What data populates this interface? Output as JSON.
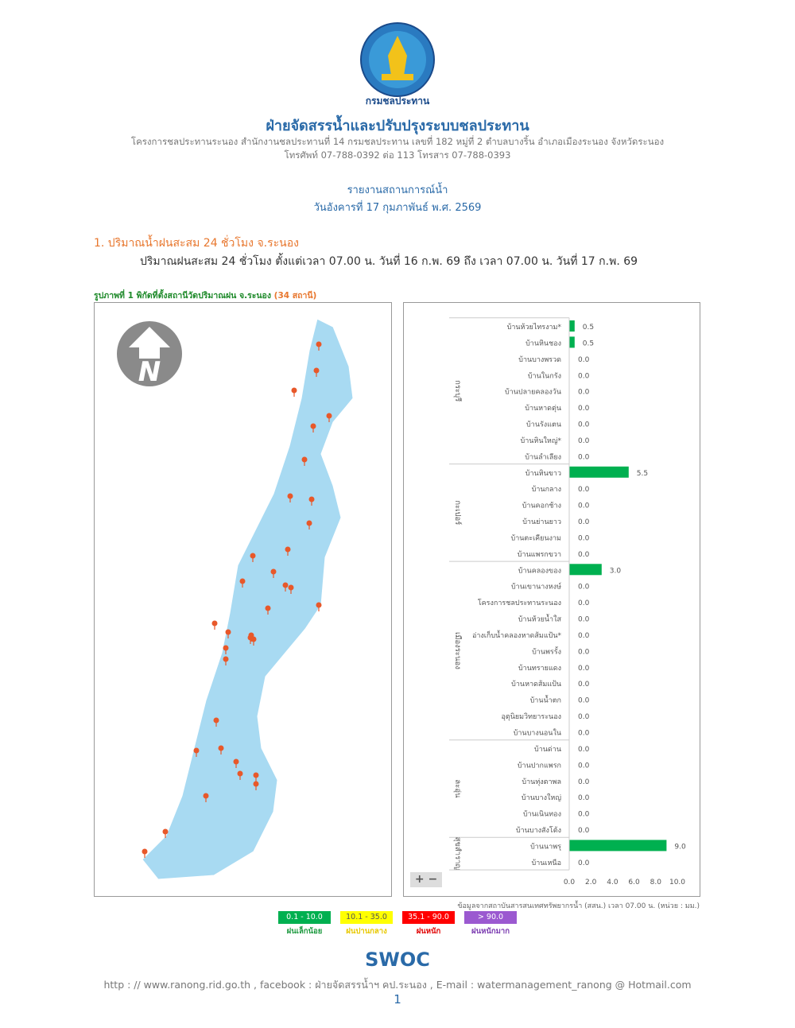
{
  "logo": {
    "text": "กรมชลประทาน"
  },
  "header": {
    "title": "ฝ่ายจัดสรรน้ำและปรับปรุงระบบชลประทาน",
    "address": "โครงการชลประทานระนอง สำนักงานชลประทานที่ 14 กรมชลประทาน เลขที่ 182 หมู่ที่ 2 ตำบลบางริ้น อำเภอเมืองระนอง จังหวัดระนอง",
    "phone": "โทรศัพท์ 07-788-0392 ต่อ 113 โทรสาร 07-788-0393"
  },
  "report": {
    "title": "รายงานสถานการณ์น้ำ",
    "date": "วันอังคารที่ 17 กุมภาพันธ์ พ.ศ. 2569"
  },
  "section1": {
    "heading": "1. ปริมาณน้ำฝนสะสม 24 ชั่วโมง จ.ระนอง",
    "period": "ปริมาณฝนสะสม 24 ชั่วโมง ตั้งแต่เวลา 07.00 น. วันที่ 16 ก.พ. 69 ถึง เวลา 07.00 น. วันที่ 17 ก.พ. 69",
    "figure_caption": "รูปภาพที่ 1 พิกัดที่ตั้งสถานีวัดปริมาณฝน จ.ระนอง",
    "figure_count": "(34 สถานี)"
  },
  "map": {
    "zoom_in": "+",
    "zoom_out": "−",
    "north_icon": "north-arrow-icon",
    "water_color": "#a8daf2",
    "marker_color": "#e8582a"
  },
  "chart_data": {
    "type": "bar",
    "orientation": "horizontal",
    "bar_color": "#00b050",
    "xlim": [
      0,
      10
    ],
    "x_ticks": [
      "0.0",
      "2.0",
      "4.0",
      "6.0",
      "8.0",
      "10.0"
    ],
    "groups": [
      {
        "name": "กระบุรี",
        "stations": [
          "บ้านห้วยไทรงาม*",
          "บ้านหินชอง",
          "บ้านบางพรวด",
          "บ้านในกรัง",
          "บ้านปลายคลองวัน",
          "บ้านหาดตุ่น",
          "บ้านรังแตน",
          "บ้านหินใหญ่*",
          "บ้านลำเลียง"
        ],
        "values": [
          0.5,
          0.5,
          0.0,
          0.0,
          0.0,
          0.0,
          0.0,
          0.0,
          0.0
        ]
      },
      {
        "name": "กะเปอร์",
        "stations": [
          "บ้านหินขาว",
          "บ้านกลาง",
          "บ้านคอกช้าง",
          "บ้านย่านยาว",
          "บ้านตะเคียนงาม",
          "บ้านแพรกขวา"
        ],
        "values": [
          5.5,
          0.0,
          0.0,
          0.0,
          0.0,
          0.0
        ]
      },
      {
        "name": "เมืองระนอง",
        "stations": [
          "บ้านคลองของ",
          "บ้านเขานางหงษ์",
          "โครงการชลประทานระนอง",
          "บ้านห้วยน้ำใส",
          "อ่างเก็บน้ำคลองหาดส้มแป้น*",
          "บ้านพรรั้ง",
          "บ้านทรายแดง",
          "บ้านหาดส้มแป้น",
          "บ้านน้ำตก",
          "อุตุนิยมวิทยาระนอง",
          "บ้านบางนอนใน"
        ],
        "values": [
          3.0,
          0,
          0,
          0,
          0,
          0,
          0,
          0,
          0,
          0,
          0
        ]
      },
      {
        "name": "ละอุ่น",
        "stations": [
          "บ้านด่าน",
          "บ้านปากแพรก",
          "บ้านทุ่งตาพล",
          "บ้านบางใหญ่",
          "บ้านเนินทอง",
          "บ้านบางสังโต้ง"
        ],
        "values": [
          0,
          0,
          0,
          0,
          0,
          0
        ]
      },
      {
        "name": "สุขสำราญ",
        "stations": [
          "บ้านนาพรุ",
          "บ้านเหนือ"
        ],
        "values": [
          9.0,
          0.0
        ]
      }
    ],
    "source_note": "ข้อมูลจากสถาบันสารสนเทศทรัพยากรน้ำ (สสน.) เวลา 07.00 น. (หน่วย : มม.)"
  },
  "legend": [
    {
      "range": "0.1 - 10.0",
      "label": "ฝนเล็กน้อย",
      "color": "#00b050",
      "text_color": "#1e9a40"
    },
    {
      "range": "10.1 - 35.0",
      "label": "ฝนปานกลาง",
      "color": "#ffff00",
      "text_color": "#e8c800"
    },
    {
      "range": "35.1 - 90.0",
      "label": "ฝนหนัก",
      "color": "#ff0000",
      "text_color": "#e00000"
    },
    {
      "range": "> 90.0",
      "label": "ฝนหนักมาก",
      "color": "#9b59d0",
      "text_color": "#7a3ab0"
    }
  ],
  "footer": {
    "brand": "SWOC",
    "contact": "http : // www.ranong.rid.go.th , facebook : ฝ่ายจัดสรรน้ำฯ คป.ระนอง , E-mail : watermanagement_ranong @ Hotmail.com",
    "page_number": "1"
  }
}
